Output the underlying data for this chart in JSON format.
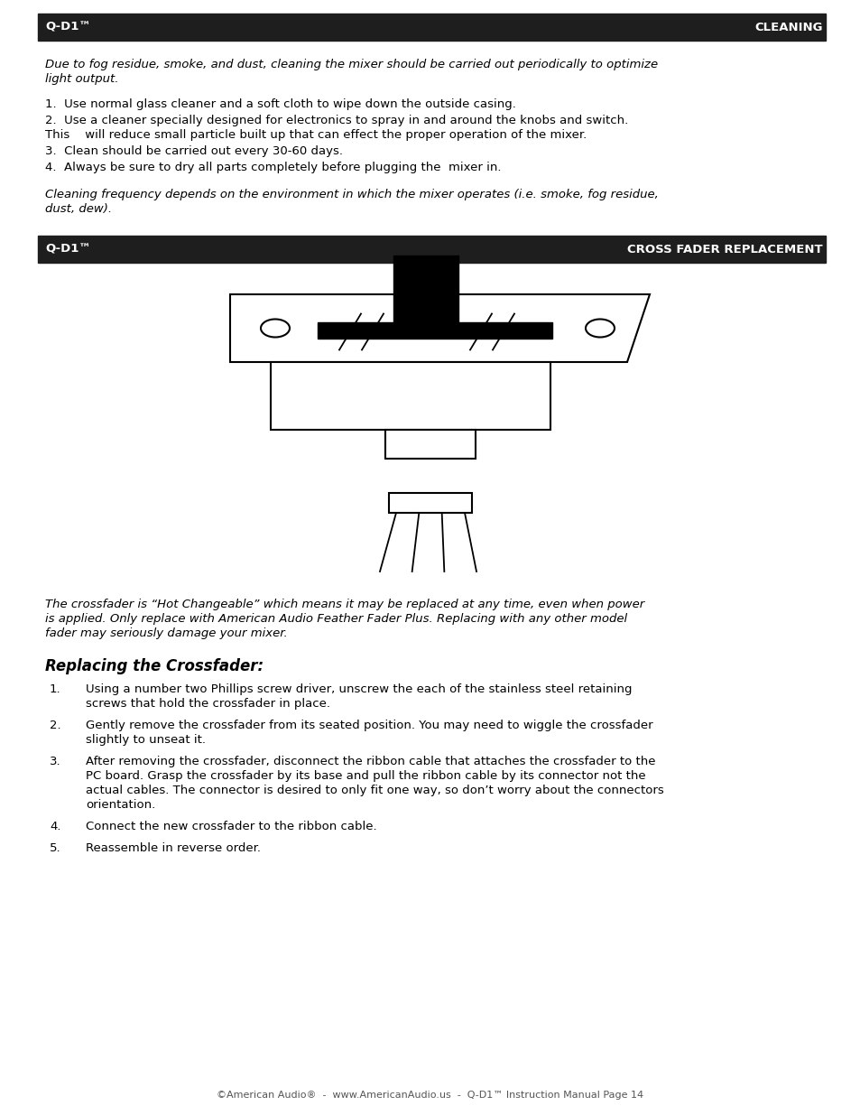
{
  "page_bg": "#ffffff",
  "header1_bg": "#1e1e1e",
  "header1_left": "Q-D1™",
  "header1_right": "CLEANING",
  "header2_bg": "#1e1e1e",
  "header2_left": "Q-D1™",
  "header2_right": "CROSS FADER REPLACEMENT",
  "header_text_color": "#ffffff",
  "body_text_color": "#000000",
  "italic_intro_line1": "Due to fog residue, smoke, and dust, cleaning the mixer should be carried out periodically to optimize",
  "italic_intro_line2": "light output.",
  "cleaning_step1": "1.  Use normal glass cleaner and a soft cloth to wipe down the outside casing.",
  "cleaning_step2a": "2.  Use a cleaner specially designed for electronics to spray in and around the knobs and switch.",
  "cleaning_step2b": "This    will reduce small particle built up that can effect the proper operation of the mixer.",
  "cleaning_step3": "3.  Clean should be carried out every 30-60 days.",
  "cleaning_step4": "4.  Always be sure to dry all parts completely before plugging the  mixer in.",
  "italic_note_line1": "Cleaning frequency depends on the environment in which the mixer operates (i.e. smoke, fog residue,",
  "italic_note_line2": "dust, dew).",
  "crossfader_line1": "The crossfader is “Hot Changeable” which means it may be replaced at any time, even when power",
  "crossfader_line2": "is applied. Only replace with American Audio Feather Fader Plus. Replacing with any other model",
  "crossfader_line3": "fader may seriously damage your mixer.",
  "replacing_title": "Replacing the Crossfader:",
  "step1_num": "1.",
  "step1_line1": "Using a number two Phillips screw driver, unscrew the each of the stainless steel retaining",
  "step1_line2": "screws that hold the crossfader in place.",
  "step2_num": "2.",
  "step2_line1": "Gently remove the crossfader from its seated position. You may need to wiggle the crossfader",
  "step2_line2": "slightly to unseat it.",
  "step3_num": "3.",
  "step3_line1": "After removing the crossfader, disconnect the ribbon cable that attaches the crossfader to the",
  "step3_line2": "PC board. Grasp the crossfader by its base and pull the ribbon cable by its connector not the",
  "step3_line3": "actual cables. The connector is desired to only fit one way, so don’t worry about the connectors",
  "step3_line4": "orientation.",
  "step4_num": "4.",
  "step4_line1": "Connect the new crossfader to the ribbon cable.",
  "step5_num": "5.",
  "step5_line1": "Reassemble in reverse order.",
  "footer": "©American Audio®  -  www.AmericanAudio.us  -  Q-D1™ Instruction Manual Page 14"
}
